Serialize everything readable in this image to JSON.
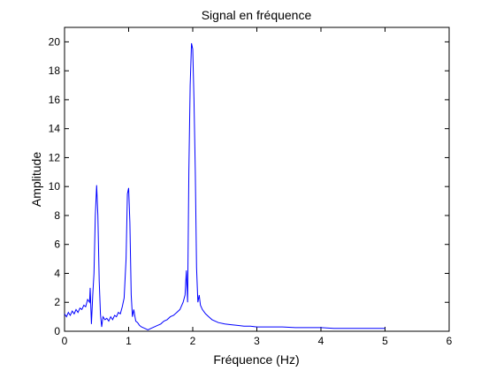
{
  "chart_data": {
    "type": "line",
    "title": "Signal en fréquence",
    "xlabel": "Fréquence (Hz)",
    "ylabel": "Amplitude",
    "xlim": [
      0,
      6
    ],
    "ylim": [
      0,
      21
    ],
    "xticks": [
      "0",
      "1",
      "2",
      "3",
      "4",
      "5",
      "6"
    ],
    "yticks": [
      "0",
      "2",
      "4",
      "6",
      "8",
      "10",
      "12",
      "14",
      "16",
      "18",
      "20"
    ],
    "grid": false,
    "legend": "none",
    "line_color": "#0000ff",
    "series": [
      {
        "x": [
          0.0,
          0.03,
          0.06,
          0.09,
          0.12,
          0.15,
          0.18,
          0.21,
          0.24,
          0.27,
          0.3,
          0.33,
          0.36,
          0.39,
          0.4,
          0.42,
          0.44,
          0.46,
          0.48,
          0.5,
          0.52,
          0.54,
          0.56,
          0.58,
          0.6,
          0.63,
          0.66,
          0.69,
          0.72,
          0.75,
          0.78,
          0.81,
          0.84,
          0.87,
          0.9,
          0.93,
          0.96,
          0.98,
          1.0,
          1.02,
          1.04,
          1.06,
          1.08,
          1.11,
          1.14,
          1.17,
          1.2,
          1.25,
          1.3,
          1.35,
          1.4,
          1.45,
          1.5,
          1.55,
          1.6,
          1.65,
          1.7,
          1.75,
          1.8,
          1.85,
          1.88,
          1.9,
          1.92,
          1.94,
          1.96,
          1.98,
          2.0,
          2.02,
          2.04,
          2.06,
          2.08,
          2.1,
          2.12,
          2.15,
          2.2,
          2.25,
          2.3,
          2.4,
          2.5,
          2.6,
          2.7,
          2.8,
          2.9,
          3.0,
          3.2,
          3.4,
          3.6,
          3.8,
          4.0,
          4.2,
          4.4,
          4.6,
          4.8,
          5.0
        ],
        "y": [
          1.2,
          1.0,
          1.3,
          1.1,
          1.4,
          1.2,
          1.5,
          1.3,
          1.6,
          1.5,
          1.8,
          1.7,
          2.2,
          2.0,
          3.0,
          0.5,
          2.5,
          4.0,
          8.0,
          10.1,
          8.0,
          3.5,
          1.2,
          0.3,
          1.0,
          0.8,
          0.9,
          0.7,
          1.0,
          0.8,
          1.1,
          1.0,
          1.3,
          1.2,
          1.7,
          2.3,
          5.0,
          9.5,
          9.9,
          7.5,
          2.5,
          1.0,
          1.5,
          0.7,
          0.6,
          0.4,
          0.3,
          0.2,
          0.1,
          0.2,
          0.3,
          0.4,
          0.5,
          0.7,
          0.8,
          1.0,
          1.1,
          1.3,
          1.5,
          2.0,
          2.5,
          4.2,
          2.0,
          11.0,
          17.0,
          19.9,
          19.5,
          16.0,
          11.0,
          4.4,
          2.0,
          2.5,
          1.8,
          1.5,
          1.2,
          1.0,
          0.8,
          0.6,
          0.5,
          0.45,
          0.4,
          0.35,
          0.35,
          0.3,
          0.3,
          0.3,
          0.25,
          0.25,
          0.25,
          0.2,
          0.2,
          0.2,
          0.2,
          0.2
        ]
      }
    ]
  }
}
